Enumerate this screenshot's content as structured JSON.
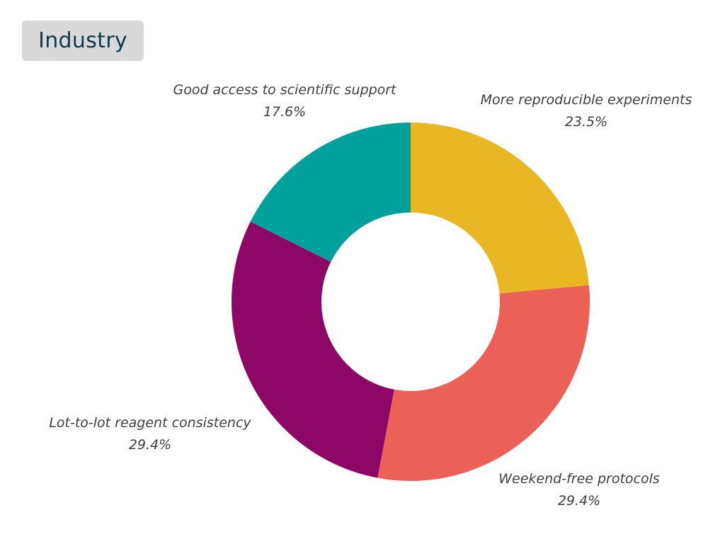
{
  "title": "Industry",
  "chart_data": {
    "type": "pie",
    "donut": true,
    "title": "Industry",
    "slices": [
      {
        "label": "More reproducible experiments",
        "value": 23.5,
        "display": "23.5%",
        "color": "#e8b723"
      },
      {
        "label": "Weekend-free protocols",
        "value": 29.4,
        "display": "29.4%",
        "color": "#ec6157"
      },
      {
        "label": "Lot-to-lot reagent consistency",
        "value": 29.4,
        "display": "29.4%",
        "color": "#8d0866"
      },
      {
        "label": "Good access to scientific support",
        "value": 17.6,
        "display": "17.6%",
        "color": "#01a09a"
      }
    ]
  }
}
